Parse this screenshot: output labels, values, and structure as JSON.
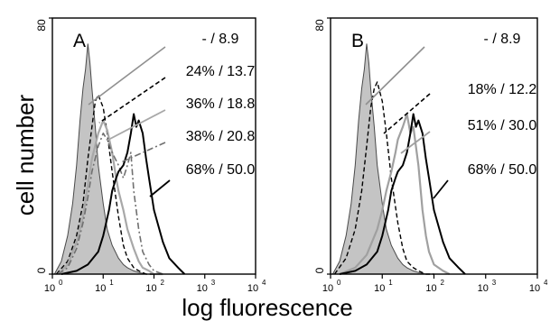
{
  "chart_data": [
    {
      "type": "line",
      "panel": "A",
      "xlabel": "log fluorescence",
      "ylabel": "cell number",
      "xscale": "log",
      "xlim": [
        1,
        10000
      ],
      "ylim": [
        0,
        80
      ],
      "xticks": [
        {
          "base": "10",
          "exp": "0",
          "value": 1
        },
        {
          "base": "10",
          "exp": "1",
          "value": 10
        },
        {
          "base": "10",
          "exp": "2",
          "value": 100
        },
        {
          "base": "10",
          "exp": "3",
          "value": 1000
        },
        {
          "base": "10",
          "exp": "4",
          "value": 10000
        }
      ],
      "yticks": [
        {
          "label": "0",
          "value": 0
        },
        {
          "label": "80",
          "value": 80
        }
      ],
      "series": [
        {
          "label": "- / 8.9",
          "style": "fill",
          "color": "#c4c4c4",
          "x": [
            1.1,
            1.5,
            2,
            2.5,
            3,
            3.5,
            4,
            4.5,
            5,
            5.5,
            6,
            7,
            8,
            10,
            12,
            15,
            20,
            25,
            30,
            40,
            50,
            70,
            100
          ],
          "y": [
            0,
            4,
            12,
            22,
            34,
            48,
            58,
            64,
            72,
            66,
            58,
            46,
            34,
            22,
            14,
            9,
            5,
            3,
            2,
            1,
            0.5,
            0,
            0
          ]
        },
        {
          "label": "24% / 13.7",
          "style": "dashed",
          "color": "#000000",
          "x": [
            1.2,
            2,
            3,
            4,
            5,
            6,
            7,
            8,
            10,
            12,
            15,
            20,
            25,
            30,
            40,
            50,
            70,
            100
          ],
          "y": [
            0,
            4,
            12,
            22,
            36,
            46,
            54,
            56,
            52,
            44,
            32,
            18,
            9,
            5,
            2,
            1,
            0,
            0
          ]
        },
        {
          "label": "36% / 18.8",
          "style": "solid",
          "color": "#a8a8a8",
          "x": [
            1.3,
            2,
            3,
            4,
            5,
            6,
            8,
            10,
            12,
            15,
            18,
            20,
            25,
            30,
            40,
            50,
            60,
            80,
            100,
            150
          ],
          "y": [
            0,
            3,
            10,
            18,
            28,
            36,
            44,
            48,
            45,
            38,
            30,
            26,
            20,
            14,
            8,
            4,
            2,
            1,
            0,
            0
          ]
        },
        {
          "label": "38% / 20.8",
          "style": "dashdot",
          "color": "#707070",
          "x": [
            1.3,
            2,
            3,
            4,
            5,
            6,
            8,
            10,
            12,
            15,
            20,
            25,
            30,
            35,
            40,
            50,
            60,
            80,
            100,
            150
          ],
          "y": [
            0,
            2,
            8,
            16,
            24,
            32,
            40,
            44,
            42,
            38,
            34,
            30,
            34,
            38,
            26,
            14,
            7,
            3,
            1,
            0
          ]
        },
        {
          "label": "68% / 50.0",
          "style": "solid",
          "color": "#000000",
          "x": [
            1.5,
            3,
            5,
            8,
            10,
            13,
            15,
            18,
            20,
            25,
            30,
            35,
            40,
            45,
            50,
            60,
            70,
            80,
            100,
            150,
            200,
            300,
            400
          ],
          "y": [
            0,
            1,
            3,
            7,
            12,
            20,
            26,
            30,
            32,
            34,
            38,
            44,
            50,
            46,
            48,
            44,
            36,
            30,
            20,
            10,
            5,
            2,
            0
          ]
        }
      ],
      "annotations": [
        {
          "label": "- / 8.9"
        },
        {
          "label": "24% / 13.7"
        },
        {
          "label": "36% / 18.8"
        },
        {
          "label": "38% / 20.8"
        },
        {
          "label": "68% / 50.0"
        }
      ]
    },
    {
      "type": "line",
      "panel": "B",
      "xlabel": "log fluorescence",
      "ylabel": "cell number",
      "xscale": "log",
      "xlim": [
        1,
        10000
      ],
      "ylim": [
        0,
        80
      ],
      "xticks": [
        {
          "base": "10",
          "exp": "0",
          "value": 1
        },
        {
          "base": "10",
          "exp": "1",
          "value": 10
        },
        {
          "base": "10",
          "exp": "2",
          "value": 100
        },
        {
          "base": "10",
          "exp": "3",
          "value": 1000
        },
        {
          "base": "10",
          "exp": "4",
          "value": 10000
        }
      ],
      "yticks": [
        {
          "label": "0",
          "value": 0
        },
        {
          "label": "80",
          "value": 80
        }
      ],
      "series": [
        {
          "label": "- / 8.9",
          "style": "fill",
          "color": "#c4c4c4",
          "x": [
            1.1,
            1.5,
            2,
            2.5,
            3,
            3.5,
            4,
            4.5,
            5,
            5.5,
            6,
            7,
            8,
            10,
            12,
            15,
            20,
            25,
            30,
            40,
            50,
            70,
            100
          ],
          "y": [
            0,
            4,
            12,
            22,
            34,
            48,
            58,
            64,
            72,
            66,
            58,
            46,
            34,
            22,
            14,
            9,
            5,
            3,
            2,
            1,
            0.5,
            0,
            0
          ]
        },
        {
          "label": "18% / 12.2",
          "style": "dashed",
          "color": "#000000",
          "x": [
            1.2,
            2,
            3,
            4,
            5,
            6,
            7,
            8,
            10,
            12,
            15,
            20,
            25,
            30,
            40,
            50,
            70,
            100
          ],
          "y": [
            0,
            5,
            14,
            26,
            40,
            52,
            58,
            60,
            54,
            44,
            30,
            16,
            8,
            4,
            2,
            1,
            0,
            0
          ]
        },
        {
          "label": "51% / 30.0",
          "style": "solid",
          "color": "#a0a0a0",
          "x": [
            1.5,
            3,
            5,
            8,
            10,
            12,
            15,
            18,
            20,
            25,
            30,
            35,
            40,
            50,
            60,
            70,
            80,
            100,
            150,
            200
          ],
          "y": [
            0,
            2,
            6,
            14,
            20,
            26,
            32,
            38,
            42,
            46,
            50,
            44,
            46,
            34,
            20,
            12,
            7,
            3,
            1,
            0
          ]
        },
        {
          "label": "68% / 50.0",
          "style": "solid",
          "color": "#000000",
          "x": [
            1.5,
            3,
            5,
            8,
            10,
            13,
            15,
            18,
            20,
            25,
            30,
            35,
            40,
            45,
            50,
            60,
            70,
            80,
            100,
            150,
            200,
            300,
            400
          ],
          "y": [
            0,
            1,
            3,
            7,
            12,
            20,
            26,
            30,
            32,
            34,
            38,
            44,
            50,
            46,
            48,
            44,
            36,
            30,
            20,
            10,
            5,
            2,
            0
          ]
        }
      ],
      "annotations": [
        {
          "label": "- / 8.9"
        },
        {
          "label": "18% / 12.2"
        },
        {
          "label": "51% / 30.0"
        },
        {
          "label": "68% / 50.0"
        }
      ]
    }
  ]
}
